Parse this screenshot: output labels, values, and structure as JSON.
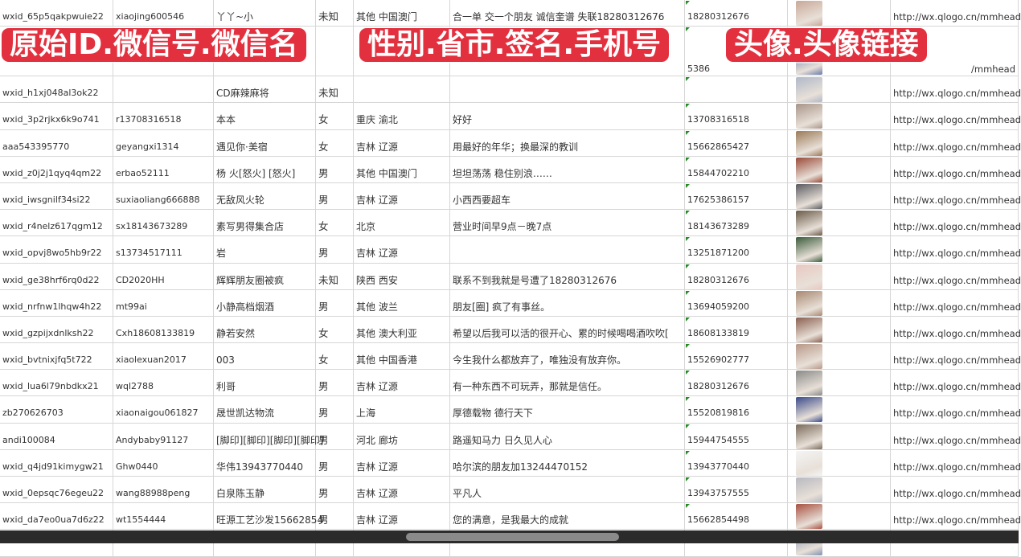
{
  "overlay_labels": [
    "原始ID.微信号.微信名",
    "性别.省市.签名.手机号",
    "头像.头像链接"
  ],
  "rows": [
    {
      "id": "wxid_65p5qakpwuie22",
      "wechat": "xiaojing600546",
      "name": "丫丫~小",
      "gender": "未知",
      "region": "其他 中国澳门",
      "signature": "合一单 交一个朋友 诚信奎谱 失联18280312676",
      "phone": "18280312676",
      "avatar_color": "#c8a898",
      "url": "http://wx.qlogo.cn/mmhead"
    },
    {
      "id": "",
      "wechat": "",
      "name": "",
      "gender": "",
      "region": "",
      "signature": "",
      "phone": "5386",
      "avatar_color": "#6a7ca8",
      "url": "/mmhead"
    },
    {
      "id": "wxid_h1xj048al3ok22",
      "wechat": "",
      "name": "CD麻辣麻将",
      "gender": "未知",
      "region": "",
      "signature": "",
      "phone": "",
      "avatar_color": "#b0b8c8",
      "url": "http://wx.qlogo.cn/mmhead"
    },
    {
      "id": "wxid_3p2rjkx6k9o741",
      "wechat": "r13708316518",
      "name": "本本",
      "gender": "女",
      "region": "重庆 渝北",
      "signature": "好好",
      "phone": "13708316518",
      "avatar_color": "#a89488",
      "url": "http://wx.qlogo.cn/mmhead"
    },
    {
      "id": "aaa543395770",
      "wechat": "geyangxi1314",
      "name": "遇见你·美宿",
      "gender": "女",
      "region": "吉林 辽源",
      "signature": "用最好的年华；换最深的教训",
      "phone": "15662865427",
      "avatar_color": "#9c7a58",
      "url": "http://wx.qlogo.cn/mmhead"
    },
    {
      "id": "wxid_z0j2j1qyq4qm22",
      "wechat": "erbao52111",
      "name": "杨 火[怒火] [怒火]",
      "gender": "男",
      "region": "其他 中国澳门",
      "signature": "坦坦荡荡 稳住别浪……",
      "phone": "15844702210",
      "avatar_color": "#9a4a38",
      "url": "http://wx.qlogo.cn/mmhead"
    },
    {
      "id": "wxid_iwsgnilf34si22",
      "wechat": "suxiaoliang666888",
      "name": "无敌风火轮",
      "gender": "男",
      "region": "吉林 辽源",
      "signature": "小西西要超车",
      "phone": "17625386157",
      "avatar_color": "#5a5a60",
      "url": "http://wx.qlogo.cn/mmhead"
    },
    {
      "id": "wxid_r4nelz617qgm12",
      "wechat": "sx18143673289",
      "name": "素写男得集合店",
      "gender": "女",
      "region": "北京",
      "signature": "营业时间早9点－晚7点",
      "phone": "18143673289",
      "avatar_color": "#6a5a48",
      "url": "http://wx.qlogo.cn/mmhead"
    },
    {
      "id": "wxid_opvj8wo5hb9r22",
      "wechat": "s13734517111",
      "name": "岩",
      "gender": "男",
      "region": "吉林 辽源",
      "signature": "",
      "phone": "13251871200",
      "avatar_color": "#3a5a3a",
      "url": "http://wx.qlogo.cn/mmhead"
    },
    {
      "id": "wxid_ge38hrf6rq0d22",
      "wechat": "CD2020HH",
      "name": "辉辉朋友圈被疯",
      "gender": "未知",
      "region": "陕西 西安",
      "signature": "联系不到我就是号遭了18280312676",
      "phone": "18280312676",
      "avatar_color": "#e8c8c0",
      "url": "http://wx.qlogo.cn/mmhead"
    },
    {
      "id": "wxid_nrfnw1lhqw4h22",
      "wechat": "mt99ai",
      "name": "小静高档烟酒",
      "gender": "男",
      "region": "其他 波兰",
      "signature": "朋友[圈] 疯了有事丝。",
      "phone": "13694059200",
      "avatar_color": "#a88870",
      "url": "http://wx.qlogo.cn/mmhead"
    },
    {
      "id": "wxid_gzpijxdnlksh22",
      "wechat": "Cxh18608133819",
      "name": "静若安然",
      "gender": "女",
      "region": "其他 澳大利亚",
      "signature": "希望以后我可以活的很开心、累的时候喝喝酒吹吹[",
      "phone": "18608133819",
      "avatar_color": "#8a6050",
      "url": "http://wx.qlogo.cn/mmhead"
    },
    {
      "id": "wxid_bvtnixjfq5t722",
      "wechat": "xiaolexuan2017",
      "name": "003",
      "gender": "女",
      "region": "其他 中国香港",
      "signature": "今生我什么都放弃了，唯独没有放弃你。",
      "phone": "15526902777",
      "avatar_color": "#b89888",
      "url": "http://wx.qlogo.cn/mmhead"
    },
    {
      "id": "wxid_lua6l79nbdkx21",
      "wechat": "wql2788",
      "name": "利哥",
      "gender": "男",
      "region": "吉林 辽源",
      "signature": "有一种东西不可玩弄，那就是信任。",
      "phone": "18280312676",
      "avatar_color": "#8a8a88",
      "url": "http://wx.qlogo.cn/mmhead"
    },
    {
      "id": "zb270626703",
      "wechat": "xiaonaigou061827",
      "name": "晟世凯达物流",
      "gender": "男",
      "region": "上海",
      "signature": "厚德载物 德行天下",
      "phone": "15520819816",
      "avatar_color": "#3a4a8a",
      "url": "http://wx.qlogo.cn/mmhead"
    },
    {
      "id": "andi100084",
      "wechat": "Andybaby91127",
      "name": "[脚印][脚印][脚印][脚印]",
      "gender": "男",
      "region": "河北 廊坊",
      "signature": "路遥知马力 日久见人心",
      "phone": "15944754555",
      "avatar_color": "#7a6a5a",
      "url": "http://wx.qlogo.cn/mmhead"
    },
    {
      "id": "wxid_q4jd91kimygw21",
      "wechat": "Ghw0440",
      "name": "华伟13943770440",
      "gender": "男",
      "region": "吉林 辽源",
      "signature": "哈尔滨的朋友加13244470152",
      "phone": "13943770440",
      "avatar_color": "#f4f4f4",
      "url": "http://wx.qlogo.cn/mmhead"
    },
    {
      "id": "wxid_0epsqc76egeu22",
      "wechat": "wang88988peng",
      "name": "白泉陈玉静",
      "gender": "男",
      "region": "吉林 辽源",
      "signature": "平凡人",
      "phone": "13943757555",
      "avatar_color": "#b8b8c0",
      "url": "http://wx.qlogo.cn/mmhead"
    },
    {
      "id": "wxid_da7eo0ua7d6z22",
      "wechat": "wt1554444",
      "name": "旺源工艺沙发15662854",
      "gender": "男",
      "region": "吉林 辽源",
      "signature": "您的满意，是我最大的成就",
      "phone": "15662854498",
      "avatar_color": "#a85040",
      "url": "http://wx.qlogo.cn/mmhead"
    },
    {
      "id": "",
      "wechat": "",
      "name": "",
      "gender": "",
      "region": "",
      "signature": "",
      "phone": "",
      "avatar_color": "#8090b0",
      "url": ""
    }
  ]
}
